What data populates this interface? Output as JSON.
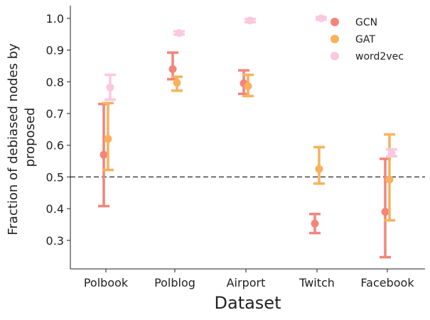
{
  "chart_data": {
    "type": "scatter",
    "xlabel": "Dataset",
    "ylabel_lines": [
      "Fraction of debiased nodes by",
      "proposed"
    ],
    "categories": [
      "Polbook",
      "Polblog",
      "Airport",
      "Twitch",
      "Facebook"
    ],
    "ylim": [
      0.21,
      1.04
    ],
    "yticks": [
      0.3,
      0.4,
      0.5,
      0.6,
      0.7,
      0.8,
      0.9,
      1.0
    ],
    "ytick_labels": [
      "0.3",
      "0.4",
      "0.5",
      "0.6",
      "0.7",
      "0.8",
      "0.9",
      "1.0"
    ],
    "reference_line": 0.5,
    "grid": false,
    "legend_position": "top-right",
    "series": [
      {
        "name": "GCN",
        "color": "#f4847a",
        "values": [
          0.57,
          0.84,
          0.795,
          0.353,
          0.39
        ],
        "err_low": [
          0.408,
          0.808,
          0.762,
          0.323,
          0.247
        ],
        "err_high": [
          0.73,
          0.892,
          0.836,
          0.383,
          0.557
        ]
      },
      {
        "name": "GAT",
        "color": "#f9b15c",
        "values": [
          0.62,
          0.797,
          0.786,
          0.525,
          0.492
        ],
        "err_low": [
          0.522,
          0.772,
          0.755,
          0.479,
          0.363
        ],
        "err_high": [
          0.733,
          0.816,
          0.822,
          0.594,
          0.634
        ]
      },
      {
        "name": "word2vec",
        "color": "#fac8df",
        "values": [
          0.782,
          0.954,
          0.993,
          1.0,
          0.574
        ],
        "err_low": [
          0.744,
          0.949,
          0.988,
          0.996,
          0.565
        ],
        "err_high": [
          0.822,
          0.959,
          0.998,
          1.004,
          0.587
        ]
      }
    ]
  }
}
